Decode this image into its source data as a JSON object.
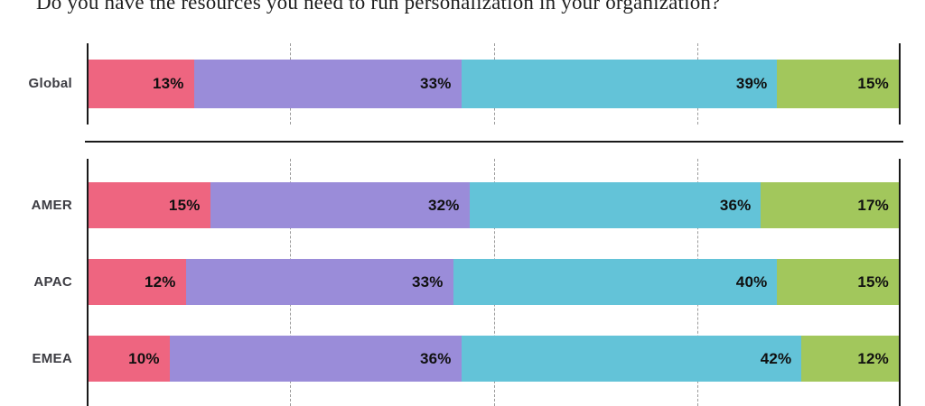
{
  "chart_data": {
    "type": "bar",
    "variant": "horizontal-stacked-100pct",
    "title": "Do you have the resources you need to run personalization in your organization?",
    "value_suffix": "%",
    "xlim": [
      0,
      100
    ],
    "gridlines_percent": [
      25,
      50,
      75
    ],
    "grid_style": "dashed",
    "legend": "none",
    "segment_colors": [
      "#EE6580",
      "#9A8CD9",
      "#63C3D8",
      "#A2C75C"
    ],
    "groups": [
      {
        "name": "global",
        "rows": [
          {
            "label": "Global",
            "values": [
              13,
              33,
              39,
              15
            ]
          }
        ]
      },
      {
        "name": "regions",
        "rows": [
          {
            "label": "AMER",
            "values": [
              15,
              32,
              36,
              17
            ]
          },
          {
            "label": "APAC",
            "values": [
              12,
              33,
              40,
              15
            ]
          },
          {
            "label": "EMEA",
            "values": [
              10,
              36,
              42,
              12
            ]
          }
        ]
      }
    ],
    "colors": {
      "axis": "#1a1a1a",
      "gridline": "#9b9b9b",
      "value_label": "#101010",
      "row_label": "#3c3c42",
      "background": "#ffffff"
    }
  }
}
